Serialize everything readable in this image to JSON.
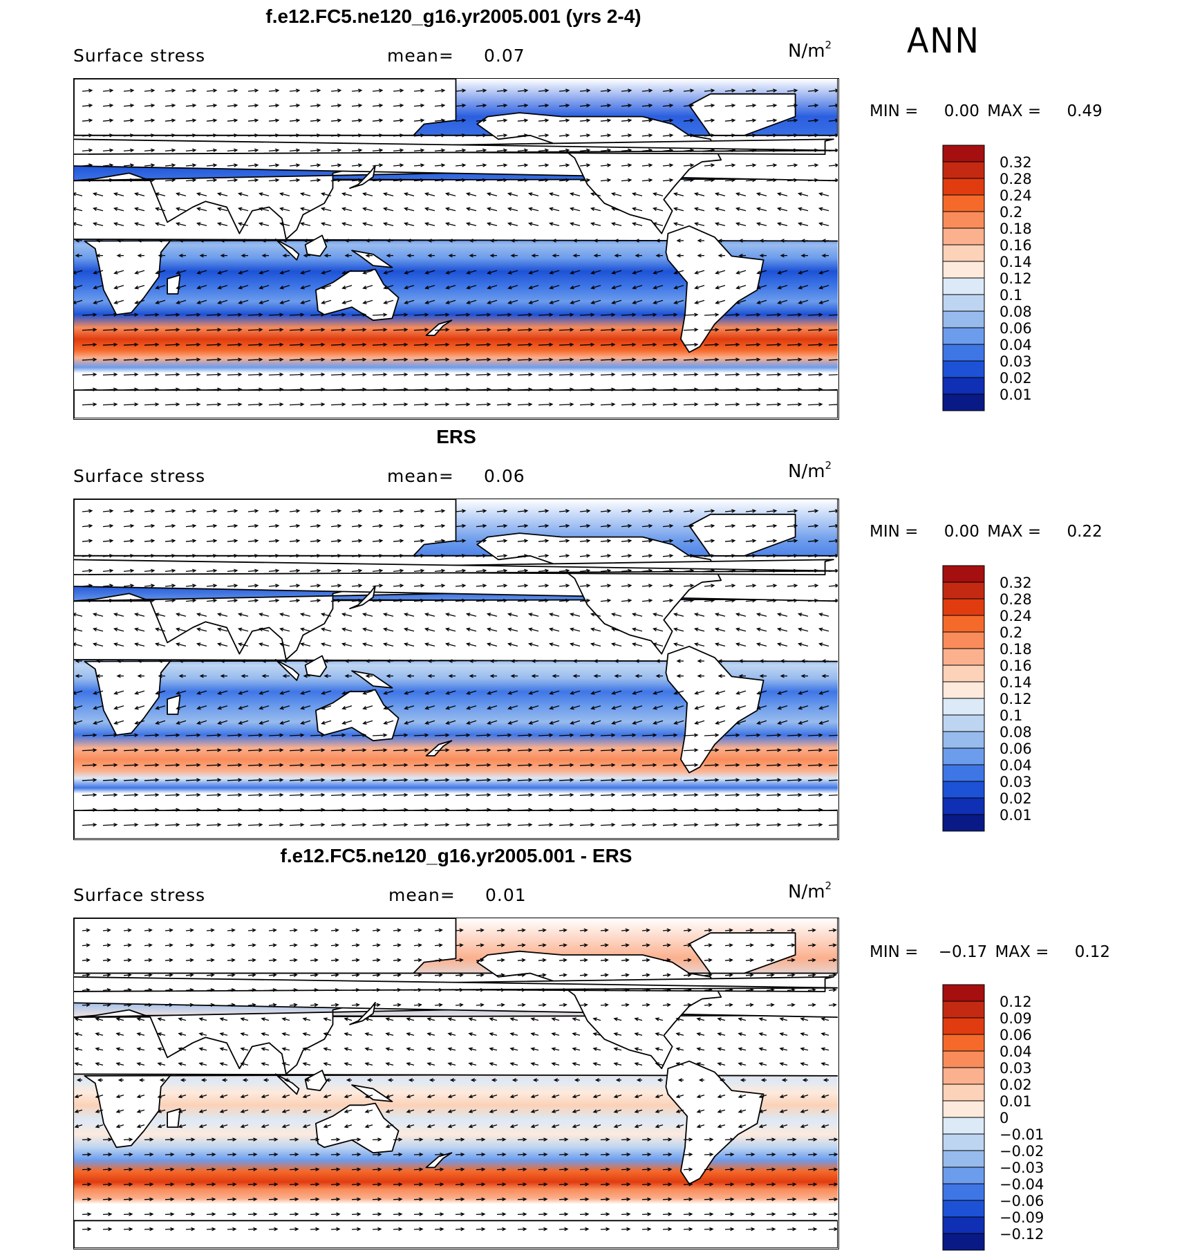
{
  "season": "ANN",
  "units_base": "N/m",
  "units_exp": "2",
  "panels": [
    {
      "title": "f.e12.FC5.ne120_g16.yr2005.001 (yrs 2-4)",
      "variable": "Surface stress",
      "mean_label": "mean=",
      "mean": "0.07",
      "min_label": "MIN =",
      "min": "0.00",
      "max_label": "MAX =",
      "max": "0.49",
      "palette": "model"
    },
    {
      "title": "ERS",
      "variable": "Surface stress",
      "mean_label": "mean=",
      "mean": "0.06",
      "min_label": "MIN =",
      "min": "0.00",
      "max_label": "MAX =",
      "max": "0.22",
      "palette": "obs"
    },
    {
      "title": "f.e12.FC5.ne120_g16.yr2005.001 - ERS",
      "variable": "Surface stress",
      "mean_label": "mean=",
      "mean": "0.01",
      "min_label": "MIN =",
      "min": "−0.17",
      "max_label": "MAX =",
      "max": "0.12",
      "palette": "diff"
    }
  ],
  "colorbars": {
    "levels": [
      "0.32",
      "0.28",
      "0.24",
      "0.2",
      "0.18",
      "0.16",
      "0.14",
      "0.12",
      "0.1",
      "0.08",
      "0.06",
      "0.04",
      "0.03",
      "0.02",
      "0.01"
    ],
    "colors": [
      "#a50f0f",
      "#c42a12",
      "#e03c10",
      "#f56a2a",
      "#f98c5a",
      "#fbb08e",
      "#fcd2b8",
      "#fdeadd",
      "#dce9f7",
      "#bed5f2",
      "#98bbee",
      "#6c9cec",
      "#3f76e6",
      "#1d52d6",
      "#0f2fb5",
      "#091a87"
    ],
    "diff_levels": [
      "0.12",
      "0.09",
      "0.06",
      "0.04",
      "0.03",
      "0.02",
      "0.01",
      "0",
      "−0.01",
      "−0.02",
      "−0.03",
      "−0.04",
      "−0.06",
      "−0.09",
      "−0.12"
    ],
    "diff_colors": [
      "#a50f0f",
      "#c42a12",
      "#e03c10",
      "#f56a2a",
      "#f98c5a",
      "#fbb08e",
      "#fcd2b8",
      "#fdeadd",
      "#dce9f7",
      "#bed5f2",
      "#98bbee",
      "#6c9cec",
      "#3f76e6",
      "#1d52d6",
      "#0f2fb5",
      "#091a87"
    ]
  },
  "chart_data": [
    {
      "type": "heatmap",
      "title": "f.e12.FC5.ne120_g16.yr2005.001 (yrs 2-4)",
      "variable": "Surface stress",
      "units": "N/m2",
      "mean": 0.07,
      "min": 0.0,
      "max": 0.49,
      "colorbar_levels": [
        0.32,
        0.28,
        0.24,
        0.2,
        0.18,
        0.16,
        0.14,
        0.12,
        0.1,
        0.08,
        0.06,
        0.04,
        0.03,
        0.02,
        0.01
      ]
    },
    {
      "type": "heatmap",
      "title": "ERS",
      "variable": "Surface stress",
      "units": "N/m2",
      "mean": 0.06,
      "min": 0.0,
      "max": 0.22,
      "colorbar_levels": [
        0.32,
        0.28,
        0.24,
        0.2,
        0.18,
        0.16,
        0.14,
        0.12,
        0.1,
        0.08,
        0.06,
        0.04,
        0.03,
        0.02,
        0.01
      ]
    },
    {
      "type": "heatmap",
      "title": "f.e12.FC5.ne120_g16.yr2005.001 - ERS",
      "variable": "Surface stress",
      "units": "N/m2",
      "mean": 0.01,
      "min": -0.17,
      "max": 0.12,
      "colorbar_levels": [
        0.12,
        0.09,
        0.06,
        0.04,
        0.03,
        0.02,
        0.01,
        0,
        -0.01,
        -0.02,
        -0.03,
        -0.04,
        -0.06,
        -0.09,
        -0.12
      ]
    }
  ]
}
